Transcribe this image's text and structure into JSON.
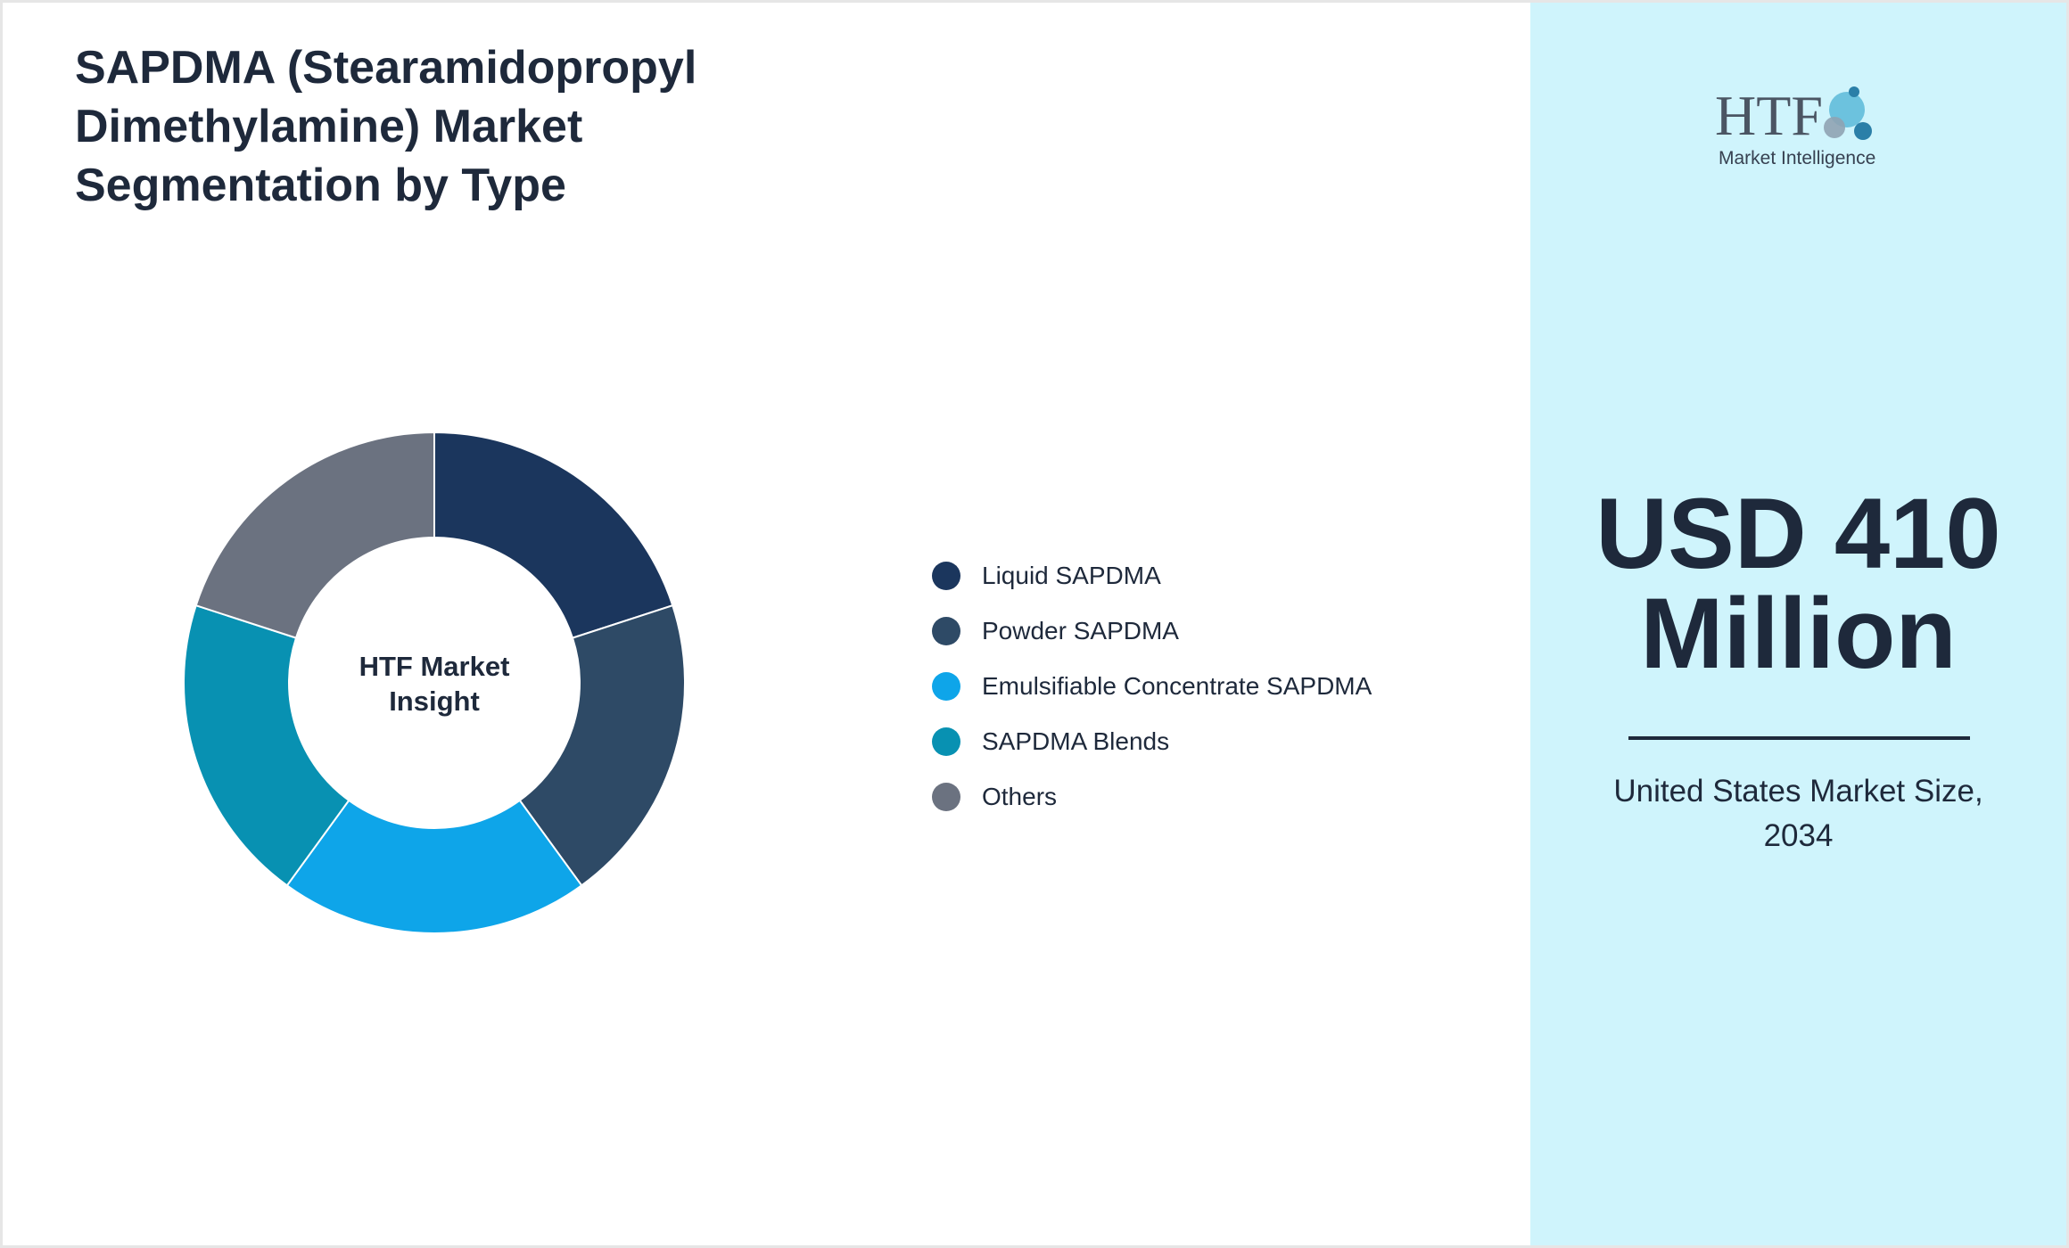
{
  "title": "SAPDMA (Stearamidopropyl Dimethylamine) Market Segmentation by Type",
  "chart_data": {
    "type": "pie",
    "donut": true,
    "center_label": "HTF Market Insight",
    "categories": [
      "Liquid SAPDMA",
      "Powder SAPDMA",
      "Emulsifiable Concentrate SAPDMA",
      "SAPDMA Blends",
      "Others"
    ],
    "values": [
      20,
      20,
      20,
      20,
      20
    ],
    "colors": [
      "#1b365d",
      "#2e4a66",
      "#0ea5e9",
      "#0891b2",
      "#6b7280"
    ],
    "legend_position": "right"
  },
  "side_panel": {
    "logo_text": "HTF",
    "logo_subtext": "Market Intelligence",
    "value": "USD 410 Million",
    "caption": "United States Market Size, 2034"
  }
}
